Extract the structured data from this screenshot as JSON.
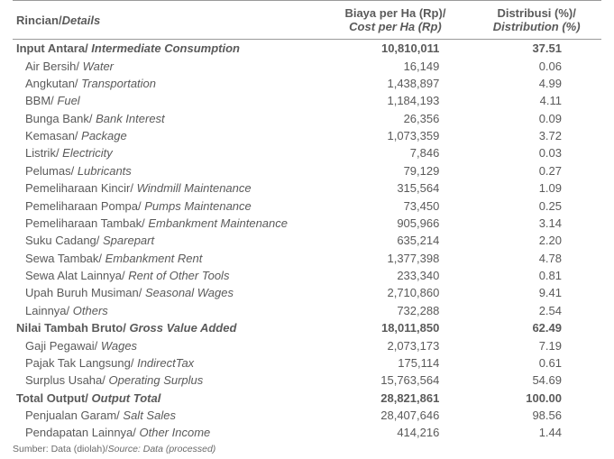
{
  "header": {
    "col1": {
      "line1": "Rincian/",
      "line2": "Details"
    },
    "col2": {
      "line1": "Biaya per Ha (Rp)/",
      "line2": "Cost per Ha (Rp)"
    },
    "col3": {
      "line1": "Distribusi (%)/",
      "line2": "Distribution (%)"
    }
  },
  "rows": [
    {
      "type": "section",
      "d1": "Input Antara/ ",
      "d2": "Intermediate Consumption",
      "cost": "10,810,011",
      "dist": "37.51"
    },
    {
      "type": "item",
      "d1": "Air Bersih/ ",
      "d2": "Water",
      "cost": "16,149",
      "dist": "0.06"
    },
    {
      "type": "item",
      "d1": "Angkutan/ ",
      "d2": "Transportation",
      "cost": "1,438,897",
      "dist": "4.99"
    },
    {
      "type": "item",
      "d1": "BBM/ ",
      "d2": "Fuel",
      "cost": "1,184,193",
      "dist": "4.11"
    },
    {
      "type": "item",
      "d1": "Bunga Bank/ ",
      "d2": "Bank Interest",
      "cost": "26,356",
      "dist": "0.09"
    },
    {
      "type": "item",
      "d1": "Kemasan/ ",
      "d2": "Package",
      "cost": "1,073,359",
      "dist": "3.72"
    },
    {
      "type": "item",
      "d1": "Listrik/ ",
      "d2": "Electricity",
      "cost": "7,846",
      "dist": "0.03"
    },
    {
      "type": "item",
      "d1": "Pelumas/ ",
      "d2": "Lubricants",
      "cost": "79,129",
      "dist": "0.27"
    },
    {
      "type": "item",
      "d1": "Pemeliharaan Kincir/ ",
      "d2": "Windmill Maintenance",
      "cost": "315,564",
      "dist": "1.09"
    },
    {
      "type": "item",
      "d1": "Pemeliharaan Pompa/ ",
      "d2": "Pumps Maintenance",
      "cost": "73,450",
      "dist": "0.25"
    },
    {
      "type": "item",
      "d1": "Pemeliharaan Tambak/ ",
      "d2": "Embankment Maintenance",
      "cost": "905,966",
      "dist": "3.14"
    },
    {
      "type": "item",
      "d1": "Suku Cadang/ ",
      "d2": "Sparepart",
      "cost": "635,214",
      "dist": "2.20"
    },
    {
      "type": "item",
      "d1": "Sewa Tambak/ ",
      "d2": "Embankment Rent",
      "cost": "1,377,398",
      "dist": "4.78"
    },
    {
      "type": "item",
      "d1": "Sewa Alat Lainnya/ ",
      "d2": "Rent of Other Tools",
      "cost": "233,340",
      "dist": "0.81"
    },
    {
      "type": "item",
      "d1": "Upah Buruh Musiman/ ",
      "d2": "Seasonal Wages",
      "cost": "2,710,860",
      "dist": "9.41"
    },
    {
      "type": "item",
      "d1": "Lainnya/ ",
      "d2": "Others",
      "cost": "732,288",
      "dist": "2.54"
    },
    {
      "type": "section",
      "d1": "Nilai Tambah Bruto/ ",
      "d2": "Gross Value Added",
      "cost": "18,011,850",
      "dist": "62.49"
    },
    {
      "type": "item",
      "d1": "Gaji Pegawai/ ",
      "d2": "Wages",
      "cost": "2,073,173",
      "dist": "7.19"
    },
    {
      "type": "item",
      "d1": "Pajak Tak Langsung/ ",
      "d2": "IndirectTax",
      "cost": "175,114",
      "dist": "0.61"
    },
    {
      "type": "item",
      "d1": "Surplus Usaha/ ",
      "d2": "Operating Surplus",
      "cost": "15,763,564",
      "dist": "54.69"
    },
    {
      "type": "section",
      "d1": "Total Output/ ",
      "d2": "Output Total",
      "cost": "28,821,861",
      "dist": "100.00"
    },
    {
      "type": "item",
      "d1": "Penjualan Garam/ ",
      "d2": "Salt Sales",
      "cost": "28,407,646",
      "dist": "98.56"
    },
    {
      "type": "item",
      "d1": "Pendapatan Lainnya/ ",
      "d2": "Other Income",
      "cost": "414,216",
      "dist": "1.44"
    }
  ],
  "source": {
    "part1": "Sumber: Data (diolah)/",
    "part2": "Source: Data (processed)"
  }
}
